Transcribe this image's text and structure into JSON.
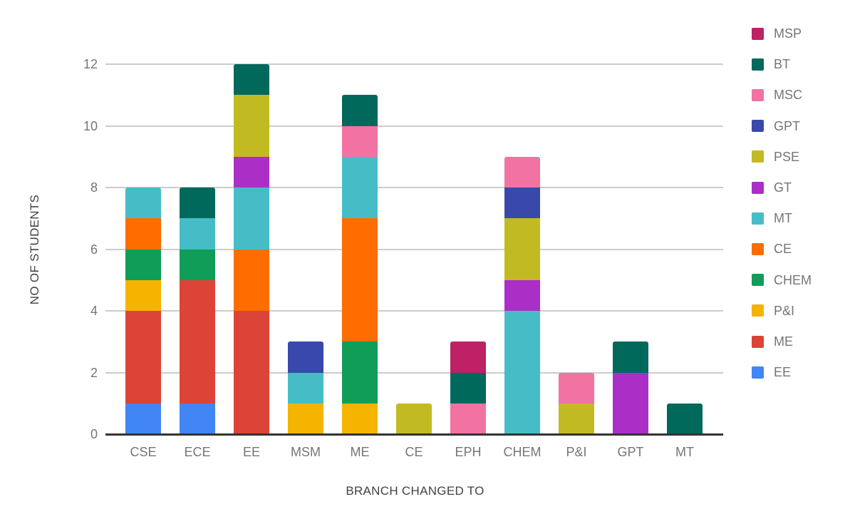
{
  "chart_data": {
    "type": "bar",
    "stacked": true,
    "title": "",
    "xlabel": "BRANCH CHANGED TO",
    "ylabel": "NO OF STUDENTS",
    "categories": [
      "CSE",
      "ECE",
      "EE",
      "MSM",
      "ME",
      "CE",
      "EPH",
      "CHEM",
      "P&I",
      "GPT",
      "MT"
    ],
    "category_totals": [
      8,
      8,
      12,
      3,
      11,
      1,
      3,
      9,
      2,
      3,
      1
    ],
    "yticks": [
      0,
      2,
      4,
      6,
      8,
      10,
      12
    ],
    "ylim": [
      0,
      12
    ],
    "grid": true,
    "legend_position": "right",
    "legend_order": [
      "MSP",
      "BT",
      "MSC",
      "GPT",
      "PSE",
      "GT",
      "MT",
      "CE",
      "CHEM",
      "P&I",
      "ME",
      "EE"
    ],
    "series": [
      {
        "name": "EE",
        "color": "#4285F4",
        "values": [
          1,
          1,
          0,
          0,
          0,
          0,
          0,
          0,
          0,
          0,
          0
        ]
      },
      {
        "name": "ME",
        "color": "#DB4437",
        "values": [
          3,
          4,
          4,
          0,
          0,
          0,
          0,
          0,
          0,
          0,
          0
        ]
      },
      {
        "name": "P&I",
        "color": "#F4B400",
        "values": [
          1,
          0,
          0,
          1,
          1,
          0,
          0,
          0,
          0,
          0,
          0
        ]
      },
      {
        "name": "CHEM",
        "color": "#109D58",
        "values": [
          1,
          1,
          0,
          0,
          2,
          0,
          0,
          0,
          0,
          0,
          0
        ]
      },
      {
        "name": "CE",
        "color": "#FF6D00",
        "values": [
          1,
          0,
          2,
          0,
          4,
          0,
          0,
          0,
          0,
          0,
          0
        ]
      },
      {
        "name": "MT",
        "color": "#46BDC6",
        "values": [
          1,
          1,
          2,
          1,
          2,
          0,
          0,
          4,
          0,
          0,
          0
        ]
      },
      {
        "name": "GT",
        "color": "#AB2FC6",
        "values": [
          0,
          0,
          1,
          0,
          0,
          0,
          0,
          1,
          0,
          2,
          0
        ]
      },
      {
        "name": "PSE",
        "color": "#C2BA22",
        "values": [
          0,
          0,
          2,
          0,
          0,
          1,
          0,
          2,
          1,
          0,
          0
        ]
      },
      {
        "name": "GPT",
        "color": "#3949AB",
        "values": [
          0,
          0,
          0,
          1,
          0,
          0,
          0,
          1,
          0,
          0,
          0
        ]
      },
      {
        "name": "MSC",
        "color": "#F272A2",
        "values": [
          0,
          0,
          0,
          0,
          1,
          0,
          1,
          1,
          1,
          0,
          0
        ]
      },
      {
        "name": "BT",
        "color": "#00695C",
        "values": [
          0,
          1,
          1,
          0,
          1,
          0,
          1,
          0,
          0,
          1,
          1
        ]
      },
      {
        "name": "MSP",
        "color": "#BE2165",
        "values": [
          0,
          0,
          0,
          0,
          0,
          0,
          1,
          0,
          0,
          0,
          0
        ]
      }
    ],
    "colors": {
      "gridline": "#cccccc",
      "baseline": "#333333",
      "tick_text": "#757575",
      "axis_title_text": "#424242",
      "legend_text": "#757575",
      "background": "#ffffff"
    }
  }
}
